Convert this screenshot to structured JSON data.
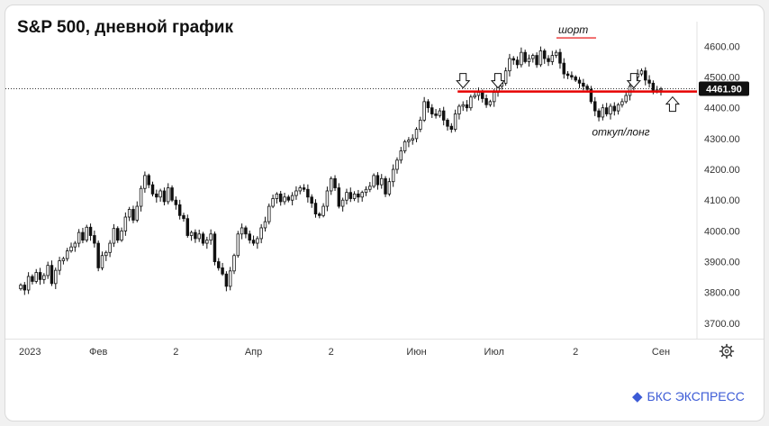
{
  "chart_data": {
    "type": "candlestick",
    "title": "S&P 500, дневной график",
    "ylim": [
      3650,
      4680
    ],
    "y_ticks": [
      3700,
      3800,
      3900,
      4000,
      4100,
      4200,
      4300,
      4400,
      4500,
      4600
    ],
    "y_tick_labels": [
      "3700.00",
      "3800.00",
      "3900.00",
      "4000.00",
      "4100.00",
      "4200.00",
      "4300.00",
      "4400.00",
      "4500.00",
      "4600.00"
    ],
    "x_tick_labels": [
      "2023",
      "Фев",
      "2",
      "Апр",
      "2",
      "Июн",
      "Июл",
      "2",
      "Сен"
    ],
    "x_tick_index": [
      0,
      20,
      40,
      60,
      80,
      102,
      122,
      143,
      165
    ],
    "current_price": 4461.9,
    "current_price_label": "4461.90",
    "level": 4453,
    "level_color": "#e60000",
    "up_color": "#ffffff",
    "down_color": "#111111",
    "annotations": {
      "short_label": "шорт",
      "long_label": "откуп/лонг"
    },
    "short_arrow_index": [
      114,
      123,
      158
    ],
    "long_arrow_index": [
      168
    ],
    "closes": [
      3824,
      3808,
      3852,
      3836,
      3865,
      3842,
      3855,
      3888,
      3829,
      3872,
      3903,
      3910,
      3935,
      3948,
      3960,
      3995,
      3970,
      4012,
      3985,
      3960,
      3880,
      3920,
      3930,
      3960,
      4008,
      3970,
      4000,
      4045,
      4070,
      4035,
      4080,
      4138,
      4180,
      4150,
      4120,
      4110,
      4130,
      4095,
      4140,
      4100,
      4085,
      4050,
      4040,
      3985,
      3995,
      3975,
      3990,
      3960,
      3970,
      3990,
      3900,
      3880,
      3860,
      3820,
      3870,
      3920,
      3990,
      4010,
      3990,
      3970,
      3960,
      3975,
      4010,
      4030,
      4080,
      4105,
      4120,
      4095,
      4110,
      4100,
      4115,
      4130,
      4140,
      4135,
      4110,
      4090,
      4055,
      4050,
      4080,
      4130,
      4170,
      4140,
      4080,
      4100,
      4125,
      4105,
      4120,
      4110,
      4125,
      4135,
      4145,
      4180,
      4150,
      4170,
      4120,
      4160,
      4200,
      4230,
      4260,
      4290,
      4295,
      4300,
      4330,
      4360,
      4420,
      4400,
      4380,
      4375,
      4390,
      4360,
      4340,
      4330,
      4380,
      4405,
      4410,
      4400,
      4435,
      4440,
      4450,
      4430,
      4410,
      4420,
      4450,
      4470,
      4480,
      4520,
      4560,
      4555,
      4540,
      4580,
      4550,
      4560,
      4570,
      4540,
      4585,
      4560,
      4550,
      4570,
      4580,
      4545,
      4510,
      4505,
      4500,
      4490,
      4480,
      4470,
      4460,
      4420,
      4390,
      4370,
      4400,
      4380,
      4405,
      4390,
      4410,
      4420,
      4440,
      4470,
      4500,
      4510,
      4520,
      4490,
      4480,
      4455,
      4458,
      4462
    ]
  },
  "brand": {
    "name": "БКС ЭКСПРЕСС",
    "mark": "◆"
  },
  "icons": {
    "settings": "gear-icon"
  }
}
